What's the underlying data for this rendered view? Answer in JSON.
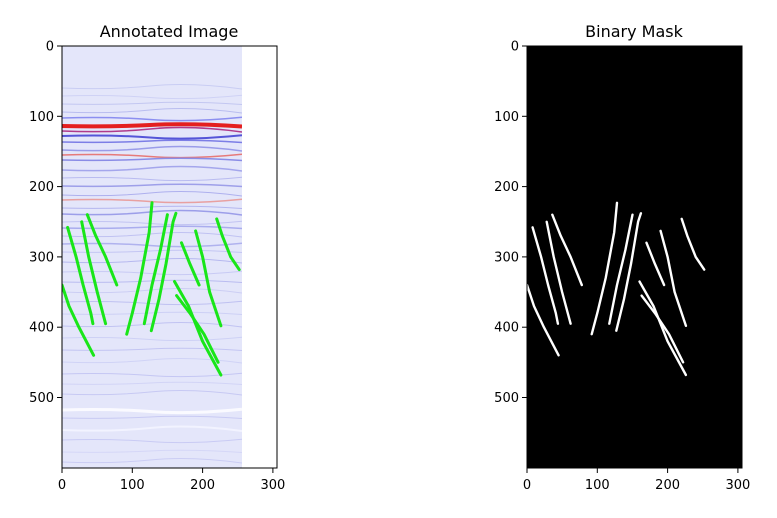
{
  "panels": [
    {
      "title": "Annotated Image",
      "x_ticks": [
        "0",
        "100",
        "200",
        "300"
      ],
      "y_ticks": [
        "0",
        "100",
        "200",
        "300",
        "400",
        "500"
      ],
      "stroke_color": "#19e619"
    },
    {
      "title": "Binary Mask",
      "x_ticks": [
        "0",
        "100",
        "200",
        "300"
      ],
      "y_ticks": [
        "0",
        "100",
        "200",
        "300",
        "400",
        "500"
      ],
      "stroke_color": "#ffffff"
    }
  ],
  "colors": {
    "seismic_base": "#e4e6fa",
    "positive_reflector": "#e41f1f",
    "negative_reflector": "#3a3ae6",
    "mask_background": "#000000",
    "mask_fault": "#ffffff",
    "fault_annotation": "#19e619"
  },
  "fault_lines": [
    [
      [
        8,
        258
      ],
      [
        20,
        300
      ],
      [
        30,
        340
      ],
      [
        41,
        380
      ],
      [
        44,
        395
      ]
    ],
    [
      [
        28,
        250
      ],
      [
        38,
        300
      ],
      [
        50,
        350
      ],
      [
        62,
        395
      ]
    ],
    [
      [
        36,
        240
      ],
      [
        48,
        270
      ],
      [
        62,
        300
      ],
      [
        78,
        340
      ]
    ],
    [
      [
        0,
        340
      ],
      [
        10,
        370
      ],
      [
        24,
        400
      ],
      [
        45,
        440
      ]
    ],
    [
      [
        92,
        410
      ],
      [
        100,
        380
      ],
      [
        112,
        330
      ],
      [
        124,
        265
      ],
      [
        128,
        223
      ]
    ],
    [
      [
        117,
        395
      ],
      [
        128,
        340
      ],
      [
        140,
        290
      ],
      [
        150,
        240
      ]
    ],
    [
      [
        127,
        405
      ],
      [
        138,
        360
      ],
      [
        148,
        310
      ],
      [
        158,
        250
      ],
      [
        162,
        238
      ]
    ],
    [
      [
        170,
        280
      ],
      [
        182,
        310
      ],
      [
        195,
        340
      ]
    ],
    [
      [
        163,
        355
      ],
      [
        182,
        380
      ],
      [
        202,
        410
      ],
      [
        222,
        450
      ]
    ],
    [
      [
        160,
        335
      ],
      [
        180,
        370
      ],
      [
        200,
        420
      ],
      [
        226,
        468
      ]
    ],
    [
      [
        190,
        263
      ],
      [
        200,
        300
      ],
      [
        210,
        350
      ],
      [
        226,
        398
      ]
    ],
    [
      [
        220,
        246
      ],
      [
        228,
        270
      ],
      [
        240,
        300
      ],
      [
        252,
        318
      ]
    ]
  ]
}
